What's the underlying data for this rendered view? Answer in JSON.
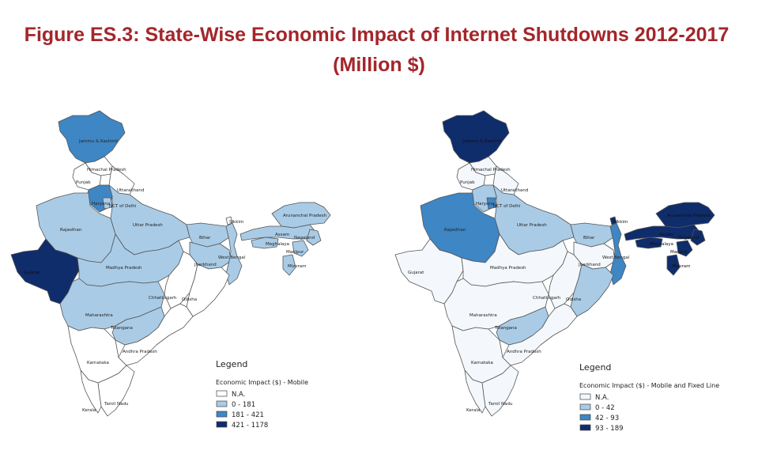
{
  "title_line1": "Figure ES.3: State-Wise Economic Impact of Internet Shutdowns 2012-2017",
  "title_line2": "(Million $)",
  "colors": {
    "na": "#ffffff",
    "na_alt": "#f4f8fc",
    "low": "#a9cbe6",
    "mid": "#3e86c4",
    "high": "#0f2c6b",
    "title": "#a3262b"
  },
  "map_left": {
    "legend_title": "Legend",
    "legend_subtitle": "Economic Impact ($) - Mobile",
    "legend_items": [
      "N.A.",
      "0 - 181",
      "181 - 421",
      "421 - 1178"
    ],
    "states": [
      {
        "name": "Jammu & Kashmir",
        "class": "mid"
      },
      {
        "name": "Himachal Pradesh",
        "class": "na"
      },
      {
        "name": "Punjab",
        "class": "na"
      },
      {
        "name": "Uttarakhand",
        "class": "na"
      },
      {
        "name": "Haryana",
        "class": "mid"
      },
      {
        "name": "NCT of Delhi",
        "class": "low"
      },
      {
        "name": "Rajasthan",
        "class": "low"
      },
      {
        "name": "Uttar Pradesh",
        "class": "low"
      },
      {
        "name": "Sikkim",
        "class": "na"
      },
      {
        "name": "Arunanchal Pradesh",
        "class": "low"
      },
      {
        "name": "Assam",
        "class": "low"
      },
      {
        "name": "Nagaland",
        "class": "low"
      },
      {
        "name": "Meghalaya",
        "class": "low"
      },
      {
        "name": "Manipur",
        "class": "low"
      },
      {
        "name": "Mizoram",
        "class": "low"
      },
      {
        "name": "Bihar",
        "class": "low"
      },
      {
        "name": "Gujarat",
        "class": "high"
      },
      {
        "name": "Madhya Pradesh",
        "class": "low"
      },
      {
        "name": "Jharkhand",
        "class": "low"
      },
      {
        "name": "West Bengal",
        "class": "low"
      },
      {
        "name": "Chhattisgarh",
        "class": "na"
      },
      {
        "name": "Odisha",
        "class": "na"
      },
      {
        "name": "Maharashtra",
        "class": "low"
      },
      {
        "name": "Telangana",
        "class": "low"
      },
      {
        "name": "Andhra Pradesh",
        "class": "na"
      },
      {
        "name": "Karnataka",
        "class": "na"
      },
      {
        "name": "Tamil Nadu",
        "class": "na"
      },
      {
        "name": "Kerala",
        "class": "na"
      }
    ]
  },
  "map_right": {
    "legend_title": "Legend",
    "legend_subtitle": "Economic Impact ($) - Mobile and Fixed Line",
    "legend_items": [
      "N.A.",
      "0 - 42",
      "42 - 93",
      "93 - 189"
    ],
    "states": [
      {
        "name": "Jammu & Kashmir",
        "class": "high"
      },
      {
        "name": "Himachal Pradesh",
        "class": "na"
      },
      {
        "name": "Punjab",
        "class": "na"
      },
      {
        "name": "Uttarakhand",
        "class": "na"
      },
      {
        "name": "Haryana",
        "class": "low"
      },
      {
        "name": "NCT of Delhi",
        "class": "mid"
      },
      {
        "name": "Rajasthan",
        "class": "mid"
      },
      {
        "name": "Uttar Pradesh",
        "class": "low"
      },
      {
        "name": "Sikkim",
        "class": "high"
      },
      {
        "name": "Arunanchal Pradesh",
        "class": "high"
      },
      {
        "name": "Assam",
        "class": "high"
      },
      {
        "name": "Nagaland",
        "class": "high"
      },
      {
        "name": "Meghalaya",
        "class": "high"
      },
      {
        "name": "Manipur",
        "class": "high"
      },
      {
        "name": "Mizoram",
        "class": "high"
      },
      {
        "name": "Bihar",
        "class": "low"
      },
      {
        "name": "Gujarat",
        "class": "na"
      },
      {
        "name": "Madhya Pradesh",
        "class": "na"
      },
      {
        "name": "Jharkhand",
        "class": "na"
      },
      {
        "name": "West Bengal",
        "class": "mid"
      },
      {
        "name": "Chhattisgarh",
        "class": "na"
      },
      {
        "name": "Odisha",
        "class": "low"
      },
      {
        "name": "Maharashtra",
        "class": "na"
      },
      {
        "name": "Telangana",
        "class": "low"
      },
      {
        "name": "Andhra Pradesh",
        "class": "na"
      },
      {
        "name": "Karnataka",
        "class": "na"
      },
      {
        "name": "Tamil Nadu",
        "class": "na"
      },
      {
        "name": "Kerala",
        "class": "na"
      }
    ]
  }
}
